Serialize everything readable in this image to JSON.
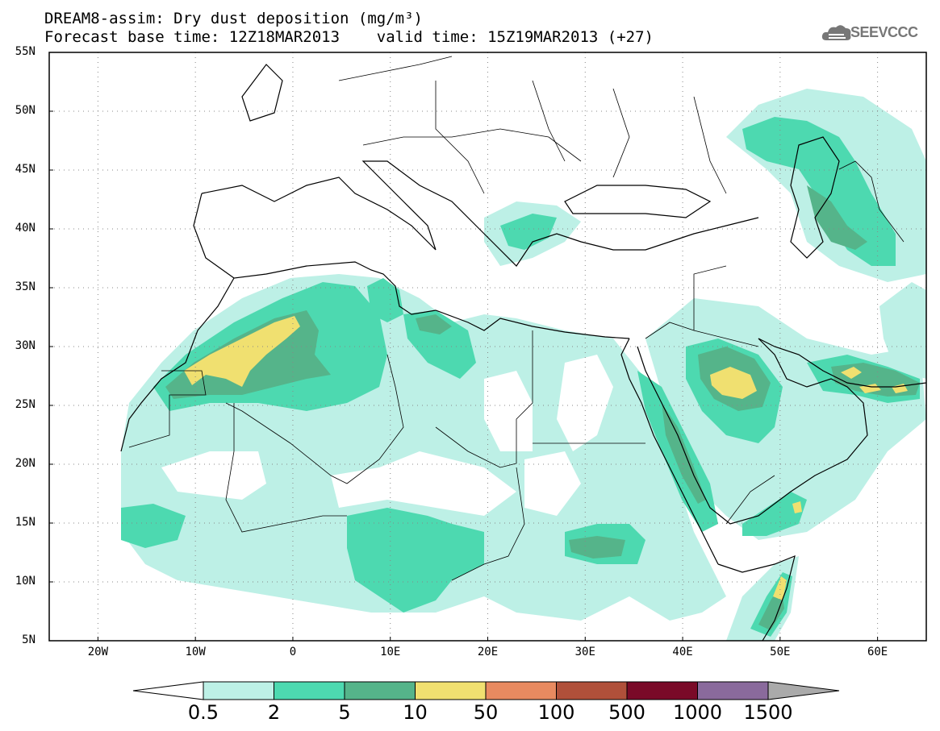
{
  "title": {
    "line1": "DREAM8-assim: Dry dust deposition (mg/m³)",
    "line2": "Forecast base time: 12Z18MAR2013    valid time: 15Z19MAR2013 (+27)"
  },
  "logo": {
    "text": "SEEVCCC",
    "icon": "cloud-logo-icon"
  },
  "map": {
    "lat_labels": [
      "55N",
      "50N",
      "45N",
      "40N",
      "35N",
      "30N",
      "25N",
      "20N",
      "15N",
      "10N",
      "5N"
    ],
    "lon_labels": [
      "20W",
      "10W",
      "0",
      "10E",
      "20E",
      "30E",
      "40E",
      "50E",
      "60E"
    ],
    "lon_range": [
      -25,
      65
    ],
    "lat_range": [
      5,
      55
    ],
    "gridlines": "dotted"
  },
  "legend": {
    "thresholds": [
      "0.5",
      "2",
      "5",
      "10",
      "50",
      "100",
      "500",
      "1000",
      "1500"
    ],
    "colors": [
      "#bdf0e6",
      "#4dd9b0",
      "#55b48a",
      "#f0e070",
      "#e88a60",
      "#b0503a",
      "#7a0a28",
      "#8a6a9c",
      "#aaaaaa"
    ],
    "under_color": "#ffffff",
    "over_color": "#aaaaaa"
  }
}
